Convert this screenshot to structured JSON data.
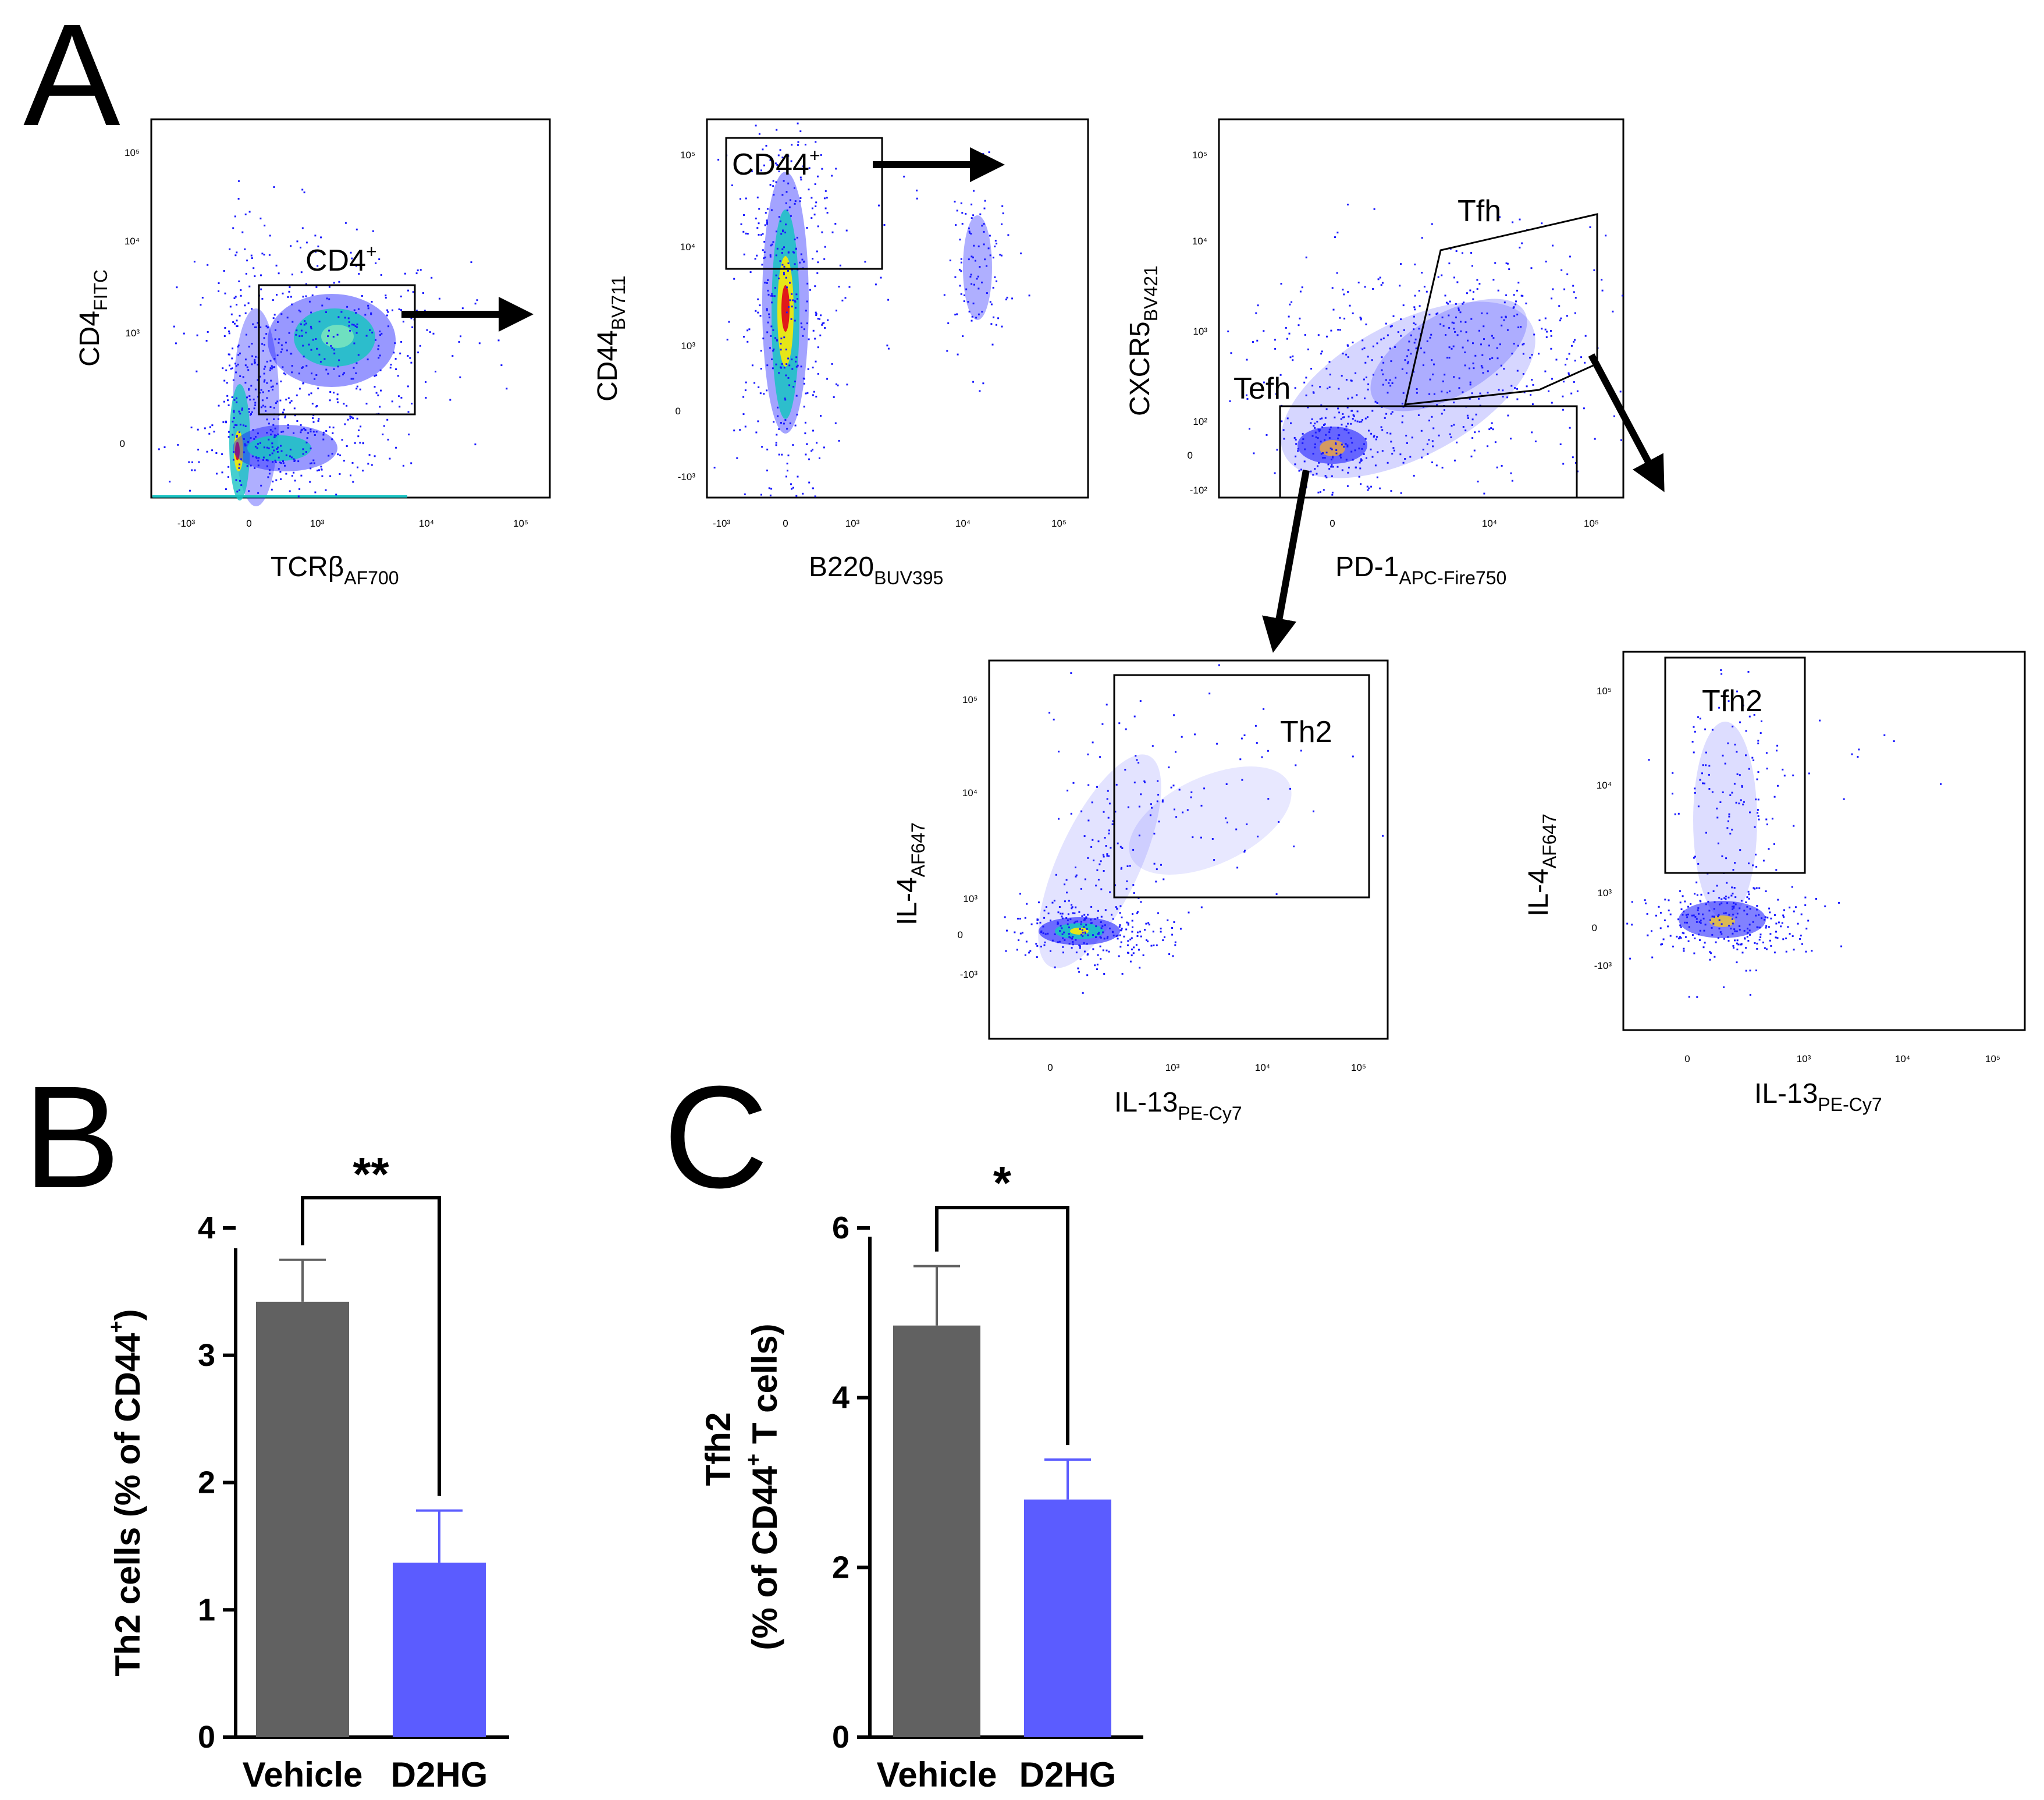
{
  "panel_labels": {
    "a": "A",
    "b": "B",
    "c": "C"
  },
  "colors": {
    "vehicle": "#616161",
    "d2hg": "#5b5cff",
    "density_low": "#1a1aff",
    "density_mid": "#19c3c3",
    "density_high": "#e6e619",
    "density_peak": "#e11a1a",
    "arrow": "#000000"
  },
  "flow_plots": [
    {
      "id": "cd4-tcrb",
      "xlabel": {
        "main": "TCRβ",
        "sub": "AF700"
      },
      "ylabel": {
        "main": "CD4",
        "sub": "FITC"
      },
      "xticks": [
        "-10³",
        "0",
        "10³",
        "10⁴",
        "10⁵"
      ],
      "yticks": [
        "0",
        "10³",
        "10⁴",
        "10⁵"
      ],
      "gates": [
        {
          "label": "CD4",
          "sup": "+"
        }
      ]
    },
    {
      "id": "cd44-b220",
      "xlabel": {
        "main": "B220",
        "sub": "BUV395"
      },
      "ylabel": {
        "main": "CD44",
        "sub": "BV711"
      },
      "xticks": [
        "-10³",
        "0",
        "10³",
        "10⁴",
        "10⁵"
      ],
      "yticks": [
        "-10³",
        "0",
        "10³",
        "10⁴",
        "10⁵"
      ],
      "gates": [
        {
          "label": "CD44",
          "sup": "+"
        }
      ]
    },
    {
      "id": "cxcr5-pd1",
      "xlabel": {
        "main": "PD-1",
        "sub": "APC-Fire750"
      },
      "ylabel": {
        "main": "CXCR5",
        "sub": "BV421"
      },
      "xticks": [
        "0",
        "10⁴",
        "10⁵"
      ],
      "yticks": [
        "-10²",
        "0",
        "10²",
        "10³",
        "10⁴",
        "10⁵"
      ],
      "gates": [
        {
          "label": "Tfh",
          "sup": ""
        },
        {
          "label": "Tefh",
          "sup": ""
        }
      ]
    },
    {
      "id": "il4-il13-th2",
      "xlabel": {
        "main": "IL-13",
        "sub": "PE-Cy7"
      },
      "ylabel": {
        "main": "IL-4",
        "sub": "AF647"
      },
      "xticks": [
        "0",
        "10³",
        "10⁴",
        "10⁵"
      ],
      "yticks": [
        "-10³",
        "0",
        "10³",
        "10⁴",
        "10⁵"
      ],
      "gates": [
        {
          "label": "Th2",
          "sup": ""
        }
      ]
    },
    {
      "id": "il4-il13-tfh2",
      "xlabel": {
        "main": "IL-13",
        "sub": "PE-Cy7"
      },
      "ylabel": {
        "main": "IL-4",
        "sub": "AF647"
      },
      "xticks": [
        "0",
        "10³",
        "10⁴",
        "10⁵"
      ],
      "yticks": [
        "-10³",
        "0",
        "10³",
        "10⁴",
        "10⁵"
      ],
      "gates": [
        {
          "label": "Tfh2",
          "sup": ""
        }
      ]
    }
  ],
  "chart_data": [
    {
      "type": "bar",
      "panel": "B",
      "title": "",
      "categories": [
        "Vehicle",
        "D2HG"
      ],
      "values": [
        3.42,
        1.37
      ],
      "errors": [
        0.33,
        0.41
      ],
      "ylabel": {
        "pre": "Th2 cells (% of  CD44",
        "sup": "+",
        "post": ")"
      },
      "ylim": [
        0,
        4
      ],
      "yticks": [
        "0",
        "1",
        "2",
        "3",
        "4"
      ],
      "significance": "**"
    },
    {
      "type": "bar",
      "panel": "C",
      "title": "",
      "categories": [
        "Vehicle",
        "D2HG"
      ],
      "values": [
        4.85,
        2.8
      ],
      "errors": [
        0.7,
        0.47
      ],
      "ylabel": {
        "line1": "Tfh2",
        "pre": "(% of CD44",
        "sup": "+",
        "post": " T cells)"
      },
      "ylim": [
        0,
        6
      ],
      "yticks": [
        "0",
        "2",
        "4",
        "6"
      ],
      "significance": "*"
    }
  ]
}
